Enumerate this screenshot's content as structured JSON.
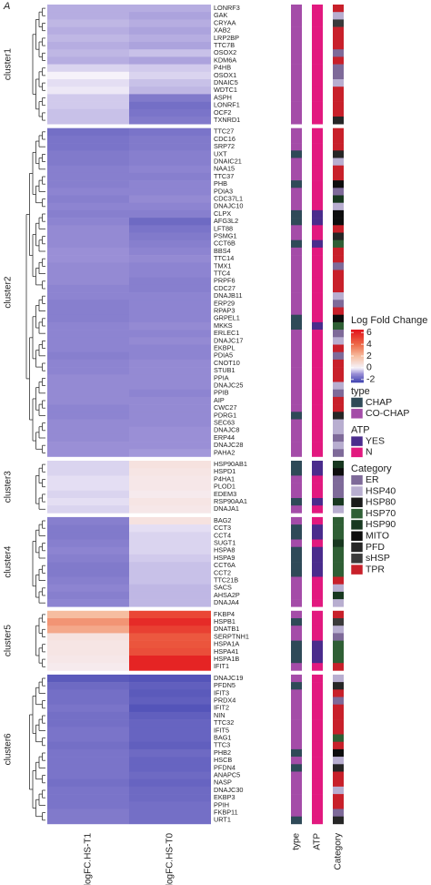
{
  "chart_data": {
    "type": "heatmap",
    "panel_label": "A",
    "columns": [
      "logFC.HS-T1",
      "logFC.HS-T0"
    ],
    "annotation_columns": [
      "type",
      "ATP",
      "Category"
    ],
    "colorbar": {
      "title": "Log Fold Change",
      "ticks": [
        -2,
        0,
        2,
        4,
        6
      ],
      "zlim": [
        -2.5,
        6.5
      ],
      "stops": [
        [
          -2.5,
          "#3b3fae"
        ],
        [
          -1,
          "#9a8fd6"
        ],
        [
          0,
          "#f6f2fa"
        ],
        [
          2,
          "#f6bda0"
        ],
        [
          4,
          "#ee6a48"
        ],
        [
          6.5,
          "#e3121b"
        ]
      ]
    },
    "legends": [
      {
        "title": "type",
        "items": [
          {
            "name": "CHAP",
            "color": "#2f4a58"
          },
          {
            "name": "CO-CHAP",
            "color": "#a44ca8"
          }
        ]
      },
      {
        "title": "ATP",
        "items": [
          {
            "name": "YES",
            "color": "#4a2c8c"
          },
          {
            "name": "N",
            "color": "#e2197f"
          }
        ]
      },
      {
        "title": "Category",
        "items": [
          {
            "name": "ER",
            "color": "#7e6a99"
          },
          {
            "name": "HSP40",
            "color": "#b8aed0"
          },
          {
            "name": "HSP80",
            "color": "#1a1a1a"
          },
          {
            "name": "HSP70",
            "color": "#2f5f35"
          },
          {
            "name": "HSP90",
            "color": "#183820"
          },
          {
            "name": "MITO",
            "color": "#0d0d0d"
          },
          {
            "name": "PFD",
            "color": "#262626"
          },
          {
            "name": "sHSP",
            "color": "#3a3a3a"
          },
          {
            "name": "TPR",
            "color": "#c8202a"
          }
        ]
      }
    ],
    "clusters": [
      {
        "name": "cluster1",
        "rows": [
          [
            "LONRF3",
            -0.7,
            -0.7,
            "CO-CHAP",
            "N",
            "TPR"
          ],
          [
            "GAK",
            -0.7,
            -0.8,
            "CO-CHAP",
            "N",
            "HSP40"
          ],
          [
            "CRYAA",
            -0.6,
            -0.7,
            "CO-CHAP",
            "N",
            "sHSP"
          ],
          [
            "XAB2",
            -0.7,
            -0.8,
            "CO-CHAP",
            "N",
            "TPR"
          ],
          [
            "LRP2BP",
            -0.6,
            -0.7,
            "CO-CHAP",
            "N",
            "TPR"
          ],
          [
            "TTC7B",
            -0.7,
            -0.8,
            "CO-CHAP",
            "N",
            "TPR"
          ],
          [
            "OSOX2",
            -0.6,
            -0.5,
            "CO-CHAP",
            "N",
            "ER"
          ],
          [
            "KDM6A",
            -0.7,
            -0.8,
            "CO-CHAP",
            "N",
            "TPR"
          ],
          [
            "P4HB",
            -0.3,
            -0.4,
            "CO-CHAP",
            "N",
            "ER"
          ],
          [
            "OSOX1",
            0,
            -0.3,
            "CO-CHAP",
            "N",
            "ER"
          ],
          [
            "DNAIC5",
            -0.2,
            -0.5,
            "CO-CHAP",
            "N",
            "HSP40"
          ],
          [
            "WDTC1",
            -0.1,
            -0.6,
            "CO-CHAP",
            "N",
            "TPR"
          ],
          [
            "ASPH",
            -0.4,
            -1.4,
            "CO-CHAP",
            "N",
            "TPR"
          ],
          [
            "LONRF1",
            -0.4,
            -1.6,
            "CO-CHAP",
            "N",
            "TPR"
          ],
          [
            "OCF2",
            -0.5,
            -1.5,
            "CO-CHAP",
            "N",
            "TPR"
          ],
          [
            "TXNRD1",
            -0.5,
            -1.4,
            "CO-CHAP",
            "N",
            "PFD"
          ]
        ]
      },
      {
        "name": "cluster2",
        "rows": [
          [
            "TTC27",
            -1.6,
            -1.5,
            "CO-CHAP",
            "N",
            "TPR"
          ],
          [
            "CDC16",
            -1.5,
            -1.4,
            "CO-CHAP",
            "N",
            "TPR"
          ],
          [
            "SRP72",
            -1.5,
            -1.4,
            "CO-CHAP",
            "N",
            "TPR"
          ],
          [
            "UXT",
            -1.4,
            -1.3,
            "CHAP",
            "N",
            "PFD"
          ],
          [
            "DNAIC21",
            -1.4,
            -1.3,
            "CO-CHAP",
            "N",
            "HSP40"
          ],
          [
            "NAA15",
            -1.3,
            -1.2,
            "CO-CHAP",
            "N",
            "TPR"
          ],
          [
            "TTC37",
            -1.3,
            -1.3,
            "CO-CHAP",
            "N",
            "TPR"
          ],
          [
            "PHB",
            -1.3,
            -1.2,
            "CHAP",
            "N",
            "MITO"
          ],
          [
            "PDIA3",
            -1.2,
            -1.2,
            "CO-CHAP",
            "N",
            "ER"
          ],
          [
            "CDC37L1",
            -1.3,
            -1.1,
            "CO-CHAP",
            "N",
            "HSP90"
          ],
          [
            "DNAJC10",
            -1.2,
            -1.2,
            "CO-CHAP",
            "N",
            "HSP40"
          ],
          [
            "CLPX",
            -1.3,
            -1.3,
            "CHAP",
            "YES",
            "MITO"
          ],
          [
            "AFG3L2",
            -1.2,
            -1.7,
            "CHAP",
            "YES",
            "MITO"
          ],
          [
            "LFT88",
            -1.1,
            -1.5,
            "CO-CHAP",
            "N",
            "TPR"
          ],
          [
            "PSMG1",
            -1.1,
            -1.4,
            "CO-CHAP",
            "N",
            "PFD"
          ],
          [
            "CCT6B",
            -1.1,
            -1.3,
            "CHAP",
            "YES",
            "HSP70"
          ],
          [
            "BBS4",
            -1.0,
            -1.2,
            "CO-CHAP",
            "N",
            "TPR"
          ],
          [
            "TTC14",
            -1.0,
            -1.1,
            "CO-CHAP",
            "N",
            "TPR"
          ],
          [
            "TMX1",
            -1.1,
            -1.2,
            "CO-CHAP",
            "N",
            "ER"
          ],
          [
            "TTC4",
            -1.1,
            -1.2,
            "CO-CHAP",
            "N",
            "TPR"
          ],
          [
            "PRPF6",
            -1.1,
            -1.3,
            "CO-CHAP",
            "N",
            "TPR"
          ],
          [
            "CDC27",
            -1.2,
            -1.3,
            "CO-CHAP",
            "N",
            "TPR"
          ],
          [
            "DNAJB11",
            -1.2,
            -1.2,
            "CO-CHAP",
            "N",
            "HSP40"
          ],
          [
            "ERP29",
            -1.3,
            -1.2,
            "CO-CHAP",
            "N",
            "ER"
          ],
          [
            "RPAP3",
            -1.3,
            -1.2,
            "CO-CHAP",
            "N",
            "TPR"
          ],
          [
            "GRPEL1",
            -1.3,
            -1.2,
            "CHAP",
            "N",
            "MITO"
          ],
          [
            "MKKS",
            -1.2,
            -1.1,
            "CHAP",
            "YES",
            "HSP70"
          ],
          [
            "ERLEC1",
            -1.2,
            -1.2,
            "CO-CHAP",
            "N",
            "ER"
          ],
          [
            "DNAJC17",
            -1.2,
            -1.1,
            "CO-CHAP",
            "N",
            "HSP40"
          ],
          [
            "EKBPL",
            -1.2,
            -1.2,
            "CO-CHAP",
            "N",
            "TPR"
          ],
          [
            "PDIA5",
            -1.3,
            -1.2,
            "CO-CHAP",
            "N",
            "ER"
          ],
          [
            "CNOT10",
            -1.2,
            -1.1,
            "CO-CHAP",
            "N",
            "TPR"
          ],
          [
            "STUB1",
            -1.2,
            -1.1,
            "CO-CHAP",
            "N",
            "TPR"
          ],
          [
            "PPIA",
            -1.1,
            -1.1,
            "CO-CHAP",
            "N",
            "TPR"
          ],
          [
            "DNAJC25",
            -1.1,
            -1.1,
            "CO-CHAP",
            "N",
            "HSP40"
          ],
          [
            "PPIB",
            -1.1,
            -1.2,
            "CO-CHAP",
            "N",
            "ER"
          ],
          [
            "AIP",
            -1.1,
            -1.1,
            "CO-CHAP",
            "N",
            "TPR"
          ],
          [
            "CWC27",
            -1.2,
            -1.1,
            "CO-CHAP",
            "N",
            "TPR"
          ],
          [
            "PDRG1",
            -1.2,
            -1.1,
            "CHAP",
            "N",
            "PFD"
          ],
          [
            "SEC63",
            -1.1,
            -1.1,
            "CO-CHAP",
            "N",
            "HSP40"
          ],
          [
            "DNAJC8",
            -1.1,
            -1.0,
            "CO-CHAP",
            "N",
            "HSP40"
          ],
          [
            "ERP44",
            -1.1,
            -1.0,
            "CO-CHAP",
            "N",
            "ER"
          ],
          [
            "DNAJC28",
            -1.0,
            -1.0,
            "CO-CHAP",
            "N",
            "HSP40"
          ],
          [
            "PAHA2",
            -1.0,
            -0.9,
            "CO-CHAP",
            "N",
            "ER"
          ]
        ]
      },
      {
        "name": "cluster3",
        "rows": [
          [
            "HSP90AB1",
            -0.3,
            0.6,
            "CHAP",
            "YES",
            "HSP90"
          ],
          [
            "HSPD1",
            -0.3,
            0.5,
            "CHAP",
            "YES",
            "MITO"
          ],
          [
            "P4HA1",
            -0.2,
            0.4,
            "CO-CHAP",
            "N",
            "ER"
          ],
          [
            "PLOD1",
            -0.2,
            0.4,
            "CO-CHAP",
            "N",
            "ER"
          ],
          [
            "EDEM3",
            -0.3,
            0.3,
            "CO-CHAP",
            "N",
            "ER"
          ],
          [
            "RSP90AA1",
            -0.2,
            0.5,
            "CHAP",
            "YES",
            "HSP90"
          ],
          [
            "DNAJA1",
            -0.3,
            0.4,
            "CO-CHAP",
            "N",
            "HSP40"
          ]
        ]
      },
      {
        "name": "cluster4",
        "rows": [
          [
            "BAG2",
            -1.3,
            0.6,
            "CO-CHAP",
            "N",
            "HSP70"
          ],
          [
            "CCT3",
            -1.4,
            -0.2,
            "CHAP",
            "YES",
            "HSP70"
          ],
          [
            "CCT4",
            -1.4,
            -0.3,
            "CHAP",
            "YES",
            "HSP70"
          ],
          [
            "SUGT1",
            -1.3,
            -0.3,
            "CO-CHAP",
            "N",
            "HSP90"
          ],
          [
            "HSPA8",
            -1.2,
            -0.3,
            "CHAP",
            "YES",
            "HSP70"
          ],
          [
            "HSPA9",
            -1.3,
            -0.4,
            "CHAP",
            "YES",
            "HSP70"
          ],
          [
            "CCT6A",
            -1.4,
            -0.5,
            "CHAP",
            "YES",
            "HSP70"
          ],
          [
            "CCT2",
            -1.4,
            -0.5,
            "CHAP",
            "YES",
            "HSP70"
          ],
          [
            "TTC21B",
            -1.3,
            -0.5,
            "CO-CHAP",
            "N",
            "TPR"
          ],
          [
            "SACS",
            -1.2,
            -0.6,
            "CO-CHAP",
            "N",
            "HSP40"
          ],
          [
            "AHSA2P",
            -1.3,
            -0.6,
            "CO-CHAP",
            "N",
            "HSP90"
          ],
          [
            "DNAJA4",
            -1.2,
            -0.6,
            "CO-CHAP",
            "N",
            "HSP40"
          ]
        ]
      },
      {
        "name": "cluster5",
        "rows": [
          [
            "FKBP4",
            2.0,
            5.0,
            "CO-CHAP",
            "N",
            "TPR"
          ],
          [
            "HSPB1",
            3.0,
            5.8,
            "CHAP",
            "N",
            "sHSP"
          ],
          [
            "DNATB1",
            2.5,
            5.2,
            "CO-CHAP",
            "N",
            "HSP40"
          ],
          [
            "SERPTNH1",
            0.6,
            4.5,
            "CO-CHAP",
            "N",
            "ER"
          ],
          [
            "HSPA1A",
            0.5,
            4.6,
            "CHAP",
            "YES",
            "HSP70"
          ],
          [
            "HSPA41",
            0.5,
            4.8,
            "CHAP",
            "YES",
            "HSP70"
          ],
          [
            "HSPA1B",
            0.4,
            6.0,
            "CHAP",
            "YES",
            "HSP70"
          ],
          [
            "IFIT1",
            0.3,
            6.0,
            "CO-CHAP",
            "N",
            "TPR"
          ]
        ]
      },
      {
        "name": "cluster6",
        "rows": [
          [
            "DNAJC19",
            -2.0,
            -2.1,
            "CO-CHAP",
            "N",
            "HSP40"
          ],
          [
            "PFDN5",
            -1.7,
            -1.9,
            "CHAP",
            "N",
            "PFD"
          ],
          [
            "IFIT3",
            -1.6,
            -2.0,
            "CO-CHAP",
            "N",
            "TPR"
          ],
          [
            "PRDX4",
            -1.6,
            -1.9,
            "CO-CHAP",
            "N",
            "ER"
          ],
          [
            "IFIT2",
            -1.5,
            -2.1,
            "CO-CHAP",
            "N",
            "TPR"
          ],
          [
            "NIN",
            -1.6,
            -1.9,
            "CO-CHAP",
            "N",
            "TPR"
          ],
          [
            "TTC32",
            -1.6,
            -1.8,
            "CO-CHAP",
            "N",
            "TPR"
          ],
          [
            "IFIT5",
            -1.5,
            -1.8,
            "CO-CHAP",
            "N",
            "TPR"
          ],
          [
            "BAG1",
            -1.5,
            -1.8,
            "CO-CHAP",
            "N",
            "HSP70"
          ],
          [
            "TTC3",
            -1.6,
            -1.9,
            "CO-CHAP",
            "N",
            "TPR"
          ],
          [
            "PHB2",
            -1.5,
            -1.7,
            "CHAP",
            "N",
            "MITO"
          ],
          [
            "HSCB",
            -1.5,
            -1.8,
            "CO-CHAP",
            "N",
            "HSP40"
          ],
          [
            "PFDN4",
            -1.5,
            -1.8,
            "CHAP",
            "N",
            "PFD"
          ],
          [
            "ANAPC5",
            -1.5,
            -1.7,
            "CO-CHAP",
            "N",
            "TPR"
          ],
          [
            "NASP",
            -1.6,
            -1.8,
            "CO-CHAP",
            "N",
            "TPR"
          ],
          [
            "DNAJC30",
            -1.5,
            -1.7,
            "CO-CHAP",
            "N",
            "HSP40"
          ],
          [
            "EKBP3",
            -1.5,
            -1.7,
            "CO-CHAP",
            "N",
            "TPR"
          ],
          [
            "PPIH",
            -1.5,
            -1.6,
            "CO-CHAP",
            "N",
            "TPR"
          ],
          [
            "FKBP11",
            -1.4,
            -1.6,
            "CO-CHAP",
            "N",
            "ER"
          ],
          [
            "URT1",
            -1.4,
            -1.6,
            "CHAP",
            "N",
            "PFD"
          ]
        ]
      }
    ]
  }
}
